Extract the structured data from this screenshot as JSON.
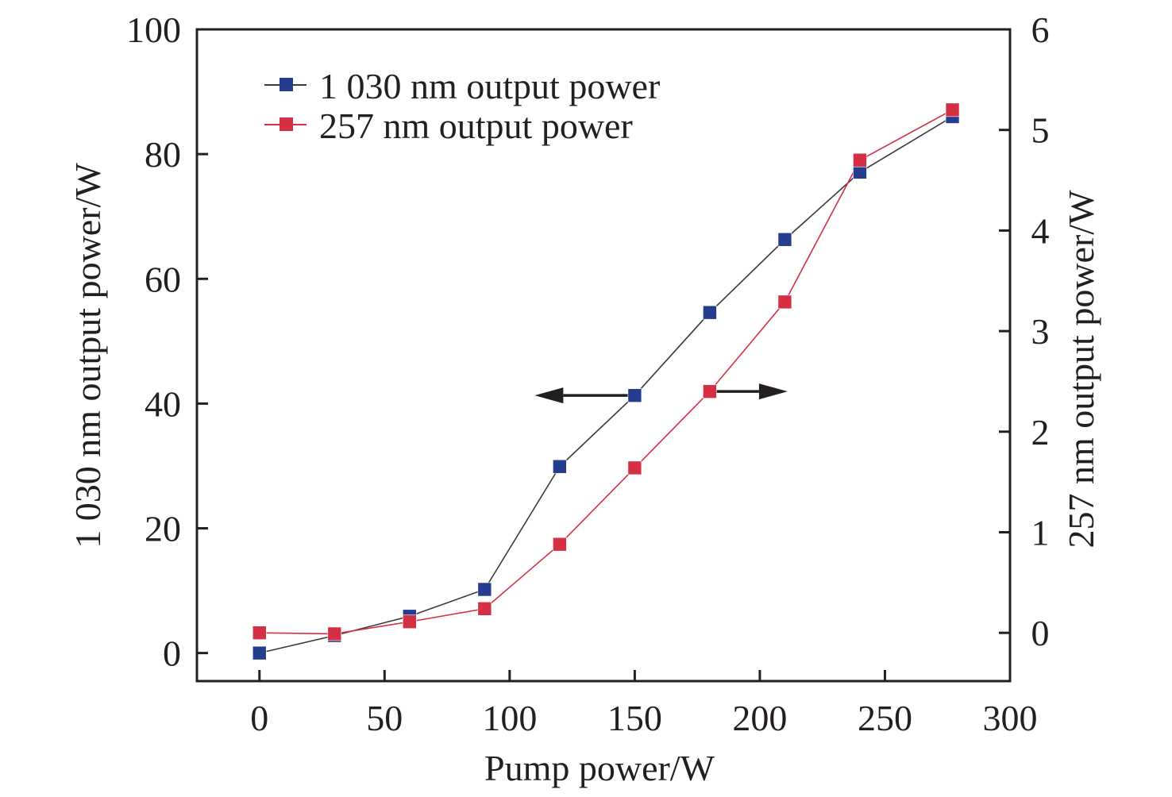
{
  "chart_data": {
    "type": "line",
    "title": "",
    "xlabel": "Pump power/W",
    "ylabel": "1 030 nm output power/W",
    "y2label": "257 nm output power/W",
    "xlim": [
      -25,
      300
    ],
    "ylim": [
      -4.5,
      100
    ],
    "y2lim": [
      -0.48,
      6
    ],
    "xticks": [
      0,
      50,
      100,
      150,
      200,
      250,
      300
    ],
    "yticks": [
      0,
      20,
      40,
      60,
      80,
      100
    ],
    "y2ticks": [
      0,
      1,
      2,
      3,
      4,
      5,
      6
    ],
    "grid": false,
    "legend_position": "top-left",
    "series": [
      {
        "name": "1 030 nm output power",
        "axis": "left",
        "line_color": "#3a3a3a",
        "marker_color": "#253d8f",
        "x": [
          0,
          30,
          60,
          90,
          120,
          150,
          180,
          210,
          240,
          277
        ],
        "y": [
          0,
          2.8,
          5.9,
          10.2,
          29.9,
          41.3,
          54.6,
          66.3,
          77.1,
          86
        ]
      },
      {
        "name": "257 nm output power",
        "axis": "right",
        "line_color": "#d42f42",
        "marker_color": "#d42f42",
        "x": [
          0,
          30,
          60,
          90,
          120,
          150,
          180,
          210,
          240,
          277
        ],
        "y": [
          0,
          -0.01,
          0.11,
          0.24,
          0.88,
          1.64,
          2.4,
          3.29,
          4.7,
          5.2
        ]
      }
    ],
    "annotations": [
      {
        "type": "arrow",
        "direction": "left",
        "target_axis": "left",
        "attached_series": "1 030 nm output power",
        "at_x": 150
      },
      {
        "type": "arrow",
        "direction": "right",
        "target_axis": "right",
        "attached_series": "257 nm output power",
        "at_x": 180
      }
    ]
  }
}
